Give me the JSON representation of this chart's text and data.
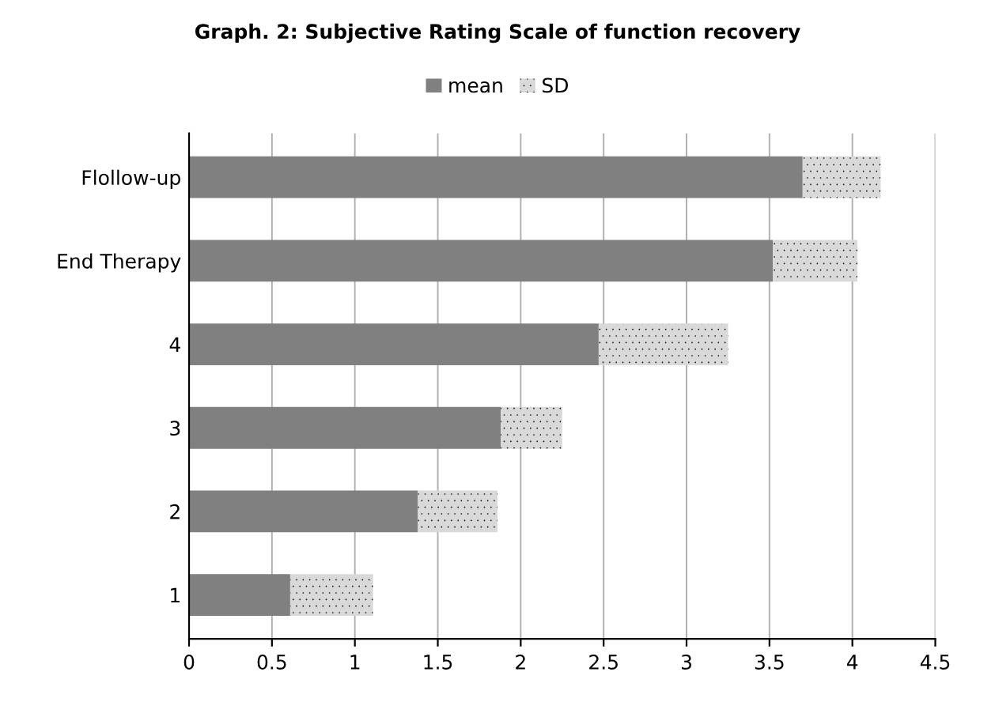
{
  "chart_data": {
    "type": "bar",
    "title": "Graph. 2: Subjective Rating Scale of function recovery",
    "orientation": "horizontal",
    "stacked": true,
    "categories": [
      "Flollow-up",
      "End Therapy",
      "4",
      "3",
      "2",
      "1"
    ],
    "series": [
      {
        "name": "mean",
        "color": "#808080",
        "values": [
          3.7,
          3.52,
          2.47,
          1.88,
          1.38,
          0.61
        ]
      },
      {
        "name": "SD",
        "color": "#d9d9d9",
        "values": [
          0.47,
          0.51,
          0.78,
          0.37,
          0.48,
          0.5
        ]
      }
    ],
    "xlim": [
      0,
      4.5
    ],
    "xticks": [
      0,
      0.5,
      1,
      1.5,
      2,
      2.5,
      3,
      3.5,
      4,
      4.5
    ],
    "grid": "x",
    "legend": "top"
  }
}
